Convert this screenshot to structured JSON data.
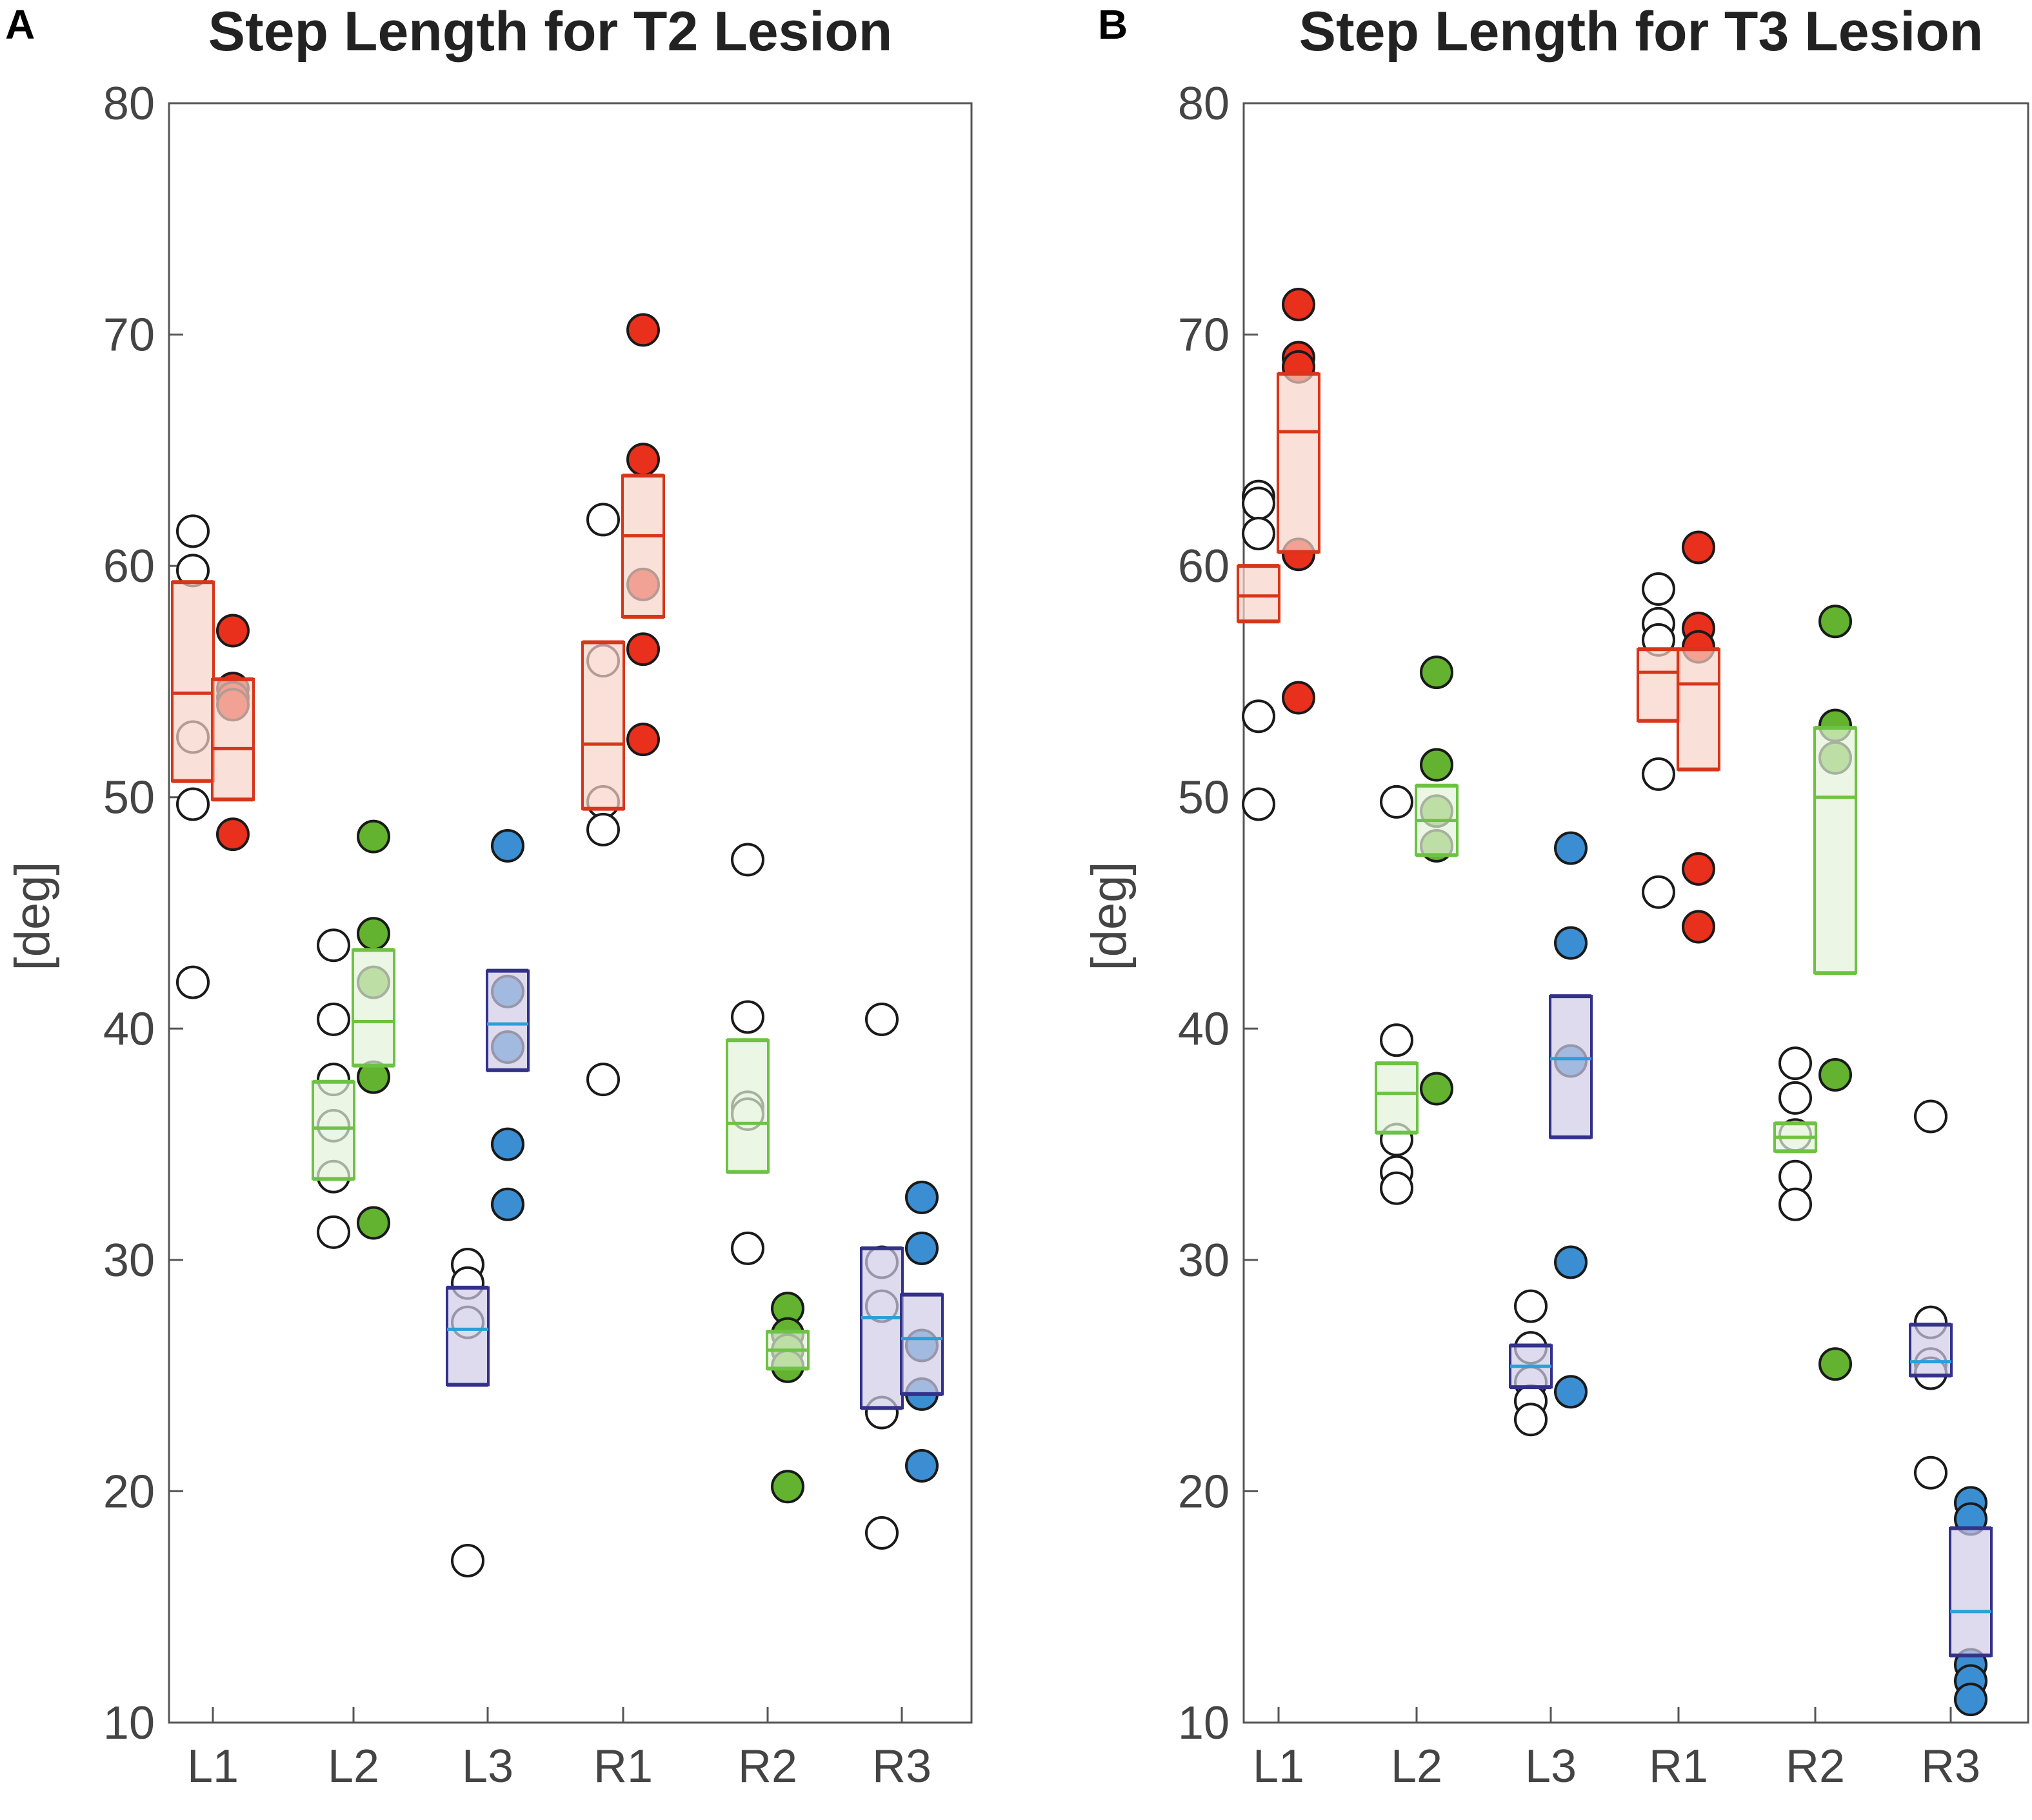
{
  "colors": {
    "L1": {
      "stroke": "#d6361a",
      "fill": "#f7d3c8",
      "median": "#d6361a",
      "dot": "#e8301c"
    },
    "R1": {
      "stroke": "#d6361a",
      "fill": "#f7d3c8",
      "median": "#d6361a",
      "dot": "#e8301c"
    },
    "L2": {
      "stroke": "#6ec243",
      "fill": "#e4f2d9",
      "median": "#6ec243",
      "dot": "#63b230"
    },
    "R2": {
      "stroke": "#6ec243",
      "fill": "#e4f2d9",
      "median": "#6ec243",
      "dot": "#63b230"
    },
    "L3": {
      "stroke": "#33318a",
      "fill": "#cfcce6",
      "median": "#2a9fd8",
      "dot": "#3b8ed2"
    },
    "R3": {
      "stroke": "#33318a",
      "fill": "#cfcce6",
      "median": "#2a9fd8",
      "dot": "#3b8ed2"
    }
  },
  "chart_data": [
    {
      "panel_label": "A",
      "type": "scatter",
      "title": "Step Length for T2 Lesion",
      "ylabel": "[deg]",
      "xlabel": "",
      "ylim": [
        10,
        80
      ],
      "yticks": [
        10,
        20,
        30,
        40,
        50,
        60,
        70,
        80
      ],
      "categories": [
        "L1",
        "L2",
        "L3",
        "R1",
        "R2",
        "R3"
      ],
      "series": [
        {
          "category": "L1",
          "condition": "pre",
          "values": [
            61.5,
            59.8,
            52.6,
            49.7,
            42.0
          ],
          "box": [
            50.7,
            54.5,
            59.3
          ]
        },
        {
          "category": "L1",
          "condition": "post",
          "values": [
            57.2,
            54.7,
            54.3,
            54.0,
            48.4
          ],
          "box": [
            49.9,
            52.1,
            55.1
          ]
        },
        {
          "category": "L2",
          "condition": "pre",
          "values": [
            43.6,
            40.4,
            37.8,
            35.8,
            33.6,
            31.2
          ],
          "box": [
            33.5,
            35.7,
            37.7
          ]
        },
        {
          "category": "L2",
          "condition": "post",
          "values": [
            48.3,
            44.1,
            42.0,
            37.9,
            31.6
          ],
          "box": [
            38.4,
            40.3,
            43.4
          ]
        },
        {
          "category": "L3",
          "condition": "pre",
          "values": [
            29.8,
            29.0,
            27.3,
            17.0
          ],
          "box": [
            24.6,
            27.0,
            28.8
          ]
        },
        {
          "category": "L3",
          "condition": "post",
          "values": [
            47.9,
            41.6,
            39.2,
            35.0,
            32.4
          ],
          "box": [
            38.2,
            40.2,
            42.5
          ]
        },
        {
          "category": "R1",
          "condition": "pre",
          "values": [
            62.0,
            55.9,
            49.8,
            48.6,
            37.8
          ],
          "box": [
            49.5,
            52.3,
            56.7
          ]
        },
        {
          "category": "R1",
          "condition": "post",
          "values": [
            70.2,
            64.6,
            59.2,
            56.4,
            52.5
          ],
          "box": [
            57.8,
            61.3,
            63.9
          ]
        },
        {
          "category": "R2",
          "condition": "pre",
          "values": [
            47.3,
            40.5,
            36.6,
            36.3,
            30.5
          ],
          "box": [
            33.8,
            35.9,
            39.5
          ]
        },
        {
          "category": "R2",
          "condition": "post",
          "values": [
            27.9,
            26.8,
            26.1,
            25.4,
            20.2
          ],
          "box": [
            25.3,
            26.1,
            26.9
          ]
        },
        {
          "category": "R3",
          "condition": "pre",
          "values": [
            40.4,
            29.9,
            28.0,
            23.4,
            18.2
          ],
          "box": [
            23.6,
            27.5,
            30.5
          ]
        },
        {
          "category": "R3",
          "condition": "post",
          "values": [
            32.7,
            30.5,
            26.3,
            24.2,
            21.1
          ],
          "box": [
            24.2,
            26.6,
            28.5
          ]
        }
      ]
    },
    {
      "panel_label": "B",
      "type": "scatter",
      "title": "Step Length for T3 Lesion",
      "ylabel": "[deg]",
      "xlabel": "",
      "ylim": [
        10,
        80
      ],
      "yticks": [
        10,
        20,
        30,
        40,
        50,
        60,
        70,
        80
      ],
      "categories": [
        "L1",
        "L2",
        "L3",
        "R1",
        "R2",
        "R3"
      ],
      "series": [
        {
          "category": "L1",
          "condition": "pre",
          "values": [
            63.0,
            62.7,
            61.4,
            53.5,
            49.7
          ],
          "box": [
            57.6,
            58.7,
            60.0
          ]
        },
        {
          "category": "L1",
          "condition": "post",
          "values": [
            71.3,
            69.0,
            68.6,
            60.5,
            54.3
          ],
          "box": [
            60.6,
            65.8,
            68.3
          ]
        },
        {
          "category": "L2",
          "condition": "pre",
          "values": [
            49.8,
            39.5,
            35.2,
            33.8,
            33.1
          ],
          "box": [
            35.5,
            37.2,
            38.5
          ]
        },
        {
          "category": "L2",
          "condition": "post",
          "values": [
            55.4,
            51.4,
            49.4,
            47.9,
            37.4
          ],
          "box": [
            47.5,
            49.0,
            50.5
          ]
        },
        {
          "category": "L3",
          "condition": "pre",
          "values": [
            28.0,
            26.2,
            24.7,
            23.9,
            23.1
          ],
          "box": [
            24.5,
            25.4,
            26.3
          ]
        },
        {
          "category": "L3",
          "condition": "post",
          "values": [
            47.8,
            43.7,
            38.6,
            29.9,
            24.3
          ],
          "box": [
            35.3,
            38.7,
            41.4
          ]
        },
        {
          "category": "R1",
          "condition": "pre",
          "values": [
            59.0,
            57.5,
            56.8,
            51.0,
            45.9
          ],
          "box": [
            53.3,
            55.4,
            56.4
          ]
        },
        {
          "category": "R1",
          "condition": "post",
          "values": [
            60.8,
            57.3,
            56.5,
            46.9,
            44.4
          ],
          "box": [
            51.2,
            54.9,
            56.4
          ]
        },
        {
          "category": "R2",
          "condition": "pre",
          "values": [
            38.5,
            37.0,
            35.4,
            33.6,
            32.4
          ],
          "box": [
            34.7,
            35.3,
            35.9
          ]
        },
        {
          "category": "R2",
          "condition": "post",
          "values": [
            57.6,
            53.1,
            51.7,
            38.0,
            25.5
          ],
          "box": [
            42.4,
            50.0,
            53.0
          ]
        },
        {
          "category": "R3",
          "condition": "pre",
          "values": [
            36.2,
            27.3,
            25.5,
            25.1,
            20.8
          ],
          "box": [
            25.0,
            25.6,
            27.2
          ]
        },
        {
          "category": "R3",
          "condition": "post",
          "values": [
            19.5,
            18.8,
            12.5,
            11.8,
            11.0
          ],
          "box": [
            12.9,
            14.8,
            18.4
          ]
        }
      ]
    }
  ]
}
